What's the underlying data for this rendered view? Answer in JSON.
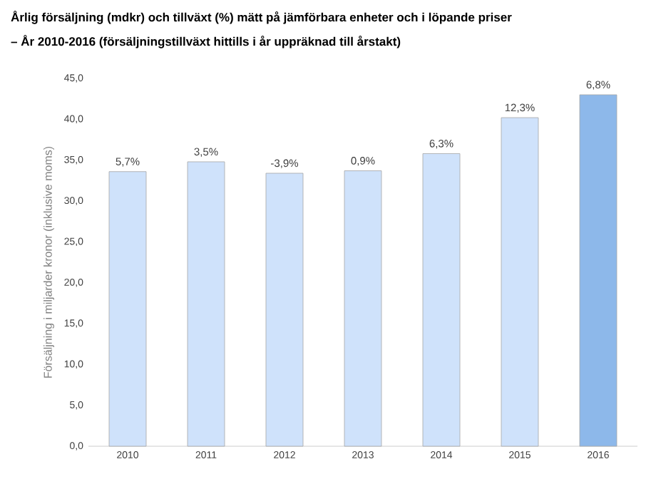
{
  "chart_data": {
    "type": "bar",
    "title": "Årlig försäljning (mdkr) och tillväxt (%) mätt på jämförbara enheter och i löpande priser",
    "subtitle": "– År 2010-2016 (försäljningstillväxt hittills i år uppräknad till årstakt)",
    "ylabel": "Försäljning i miljarder kronor (inklusive moms)",
    "categories": [
      "2010",
      "2011",
      "2012",
      "2013",
      "2014",
      "2015",
      "2016"
    ],
    "values": [
      33.6,
      34.8,
      33.4,
      33.7,
      35.8,
      40.2,
      43.0
    ],
    "colors": [
      "#cfe2fb",
      "#cfe2fb",
      "#cfe2fb",
      "#cfe2fb",
      "#cfe2fb",
      "#cfe2fb",
      "#8db8ea"
    ],
    "annotations": [
      {
        "text": "5,7%",
        "x": "2010",
        "y": 33.6
      },
      {
        "text": "3,5%",
        "x": "2011",
        "y": 34.8
      },
      {
        "text": "-3,9%",
        "x": "2012",
        "y": 33.4
      },
      {
        "text": "0,9%",
        "x": "2013",
        "y": 33.7
      },
      {
        "text": "6,3%",
        "x": "2014",
        "y": 35.8
      },
      {
        "text": "12,3%",
        "x": "2015",
        "y": 40.2
      },
      {
        "text": "6,8%",
        "x": "2016",
        "y": 43.0
      }
    ],
    "ylim": [
      0,
      45
    ],
    "yticks": [
      {
        "value": 0,
        "label": "0,0"
      },
      {
        "value": 5,
        "label": "5,0"
      },
      {
        "value": 10,
        "label": "10,0"
      },
      {
        "value": 15,
        "label": "15,0"
      },
      {
        "value": 20,
        "label": "20,0"
      },
      {
        "value": 25,
        "label": "25,0"
      },
      {
        "value": 30,
        "label": "30,0"
      },
      {
        "value": 35,
        "label": "35,0"
      },
      {
        "value": 40,
        "label": "40,0"
      },
      {
        "value": 45,
        "label": "45,0"
      }
    ],
    "grid": false
  }
}
